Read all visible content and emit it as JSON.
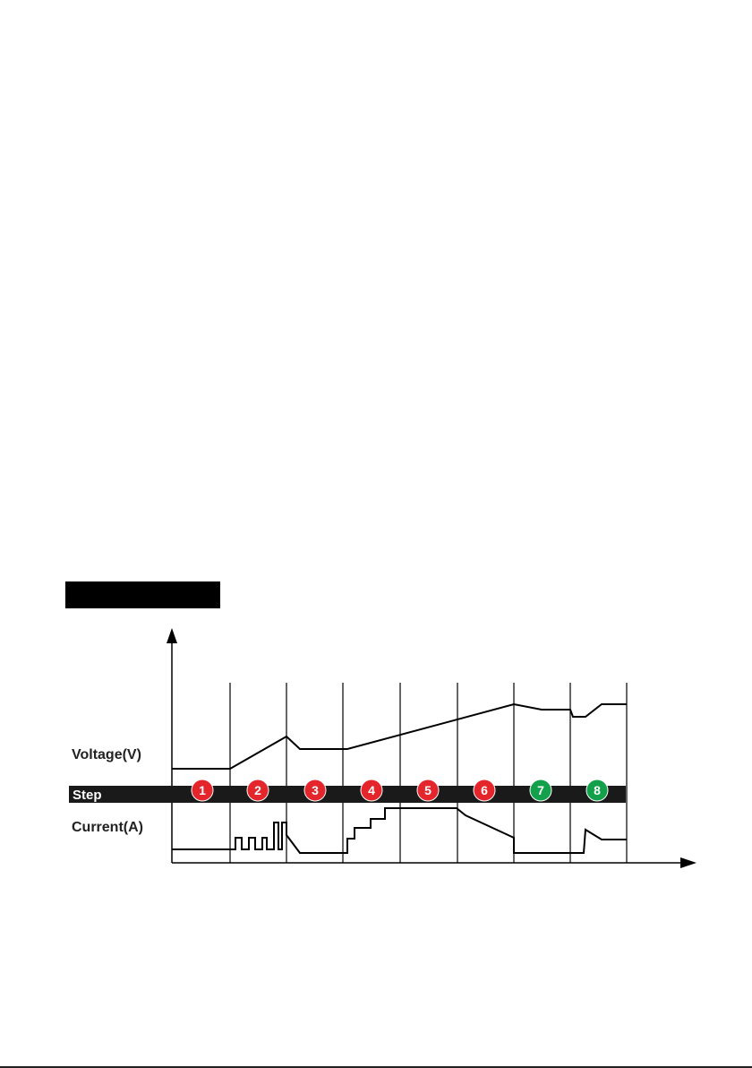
{
  "header": {
    "title": ""
  },
  "labels": {
    "voltage": "Voltage(V)",
    "step": "Step",
    "current": "Current(A)"
  },
  "colors": {
    "red": "#e4252b",
    "green": "#12a04a",
    "band": "#1a1a1a"
  },
  "steps": [
    {
      "number": "1",
      "color": "red"
    },
    {
      "number": "2",
      "color": "red"
    },
    {
      "number": "3",
      "color": "red"
    },
    {
      "number": "4",
      "color": "red"
    },
    {
      "number": "5",
      "color": "red"
    },
    {
      "number": "6",
      "color": "red"
    },
    {
      "number": "7",
      "color": "green"
    },
    {
      "number": "8",
      "color": "green"
    }
  ]
}
